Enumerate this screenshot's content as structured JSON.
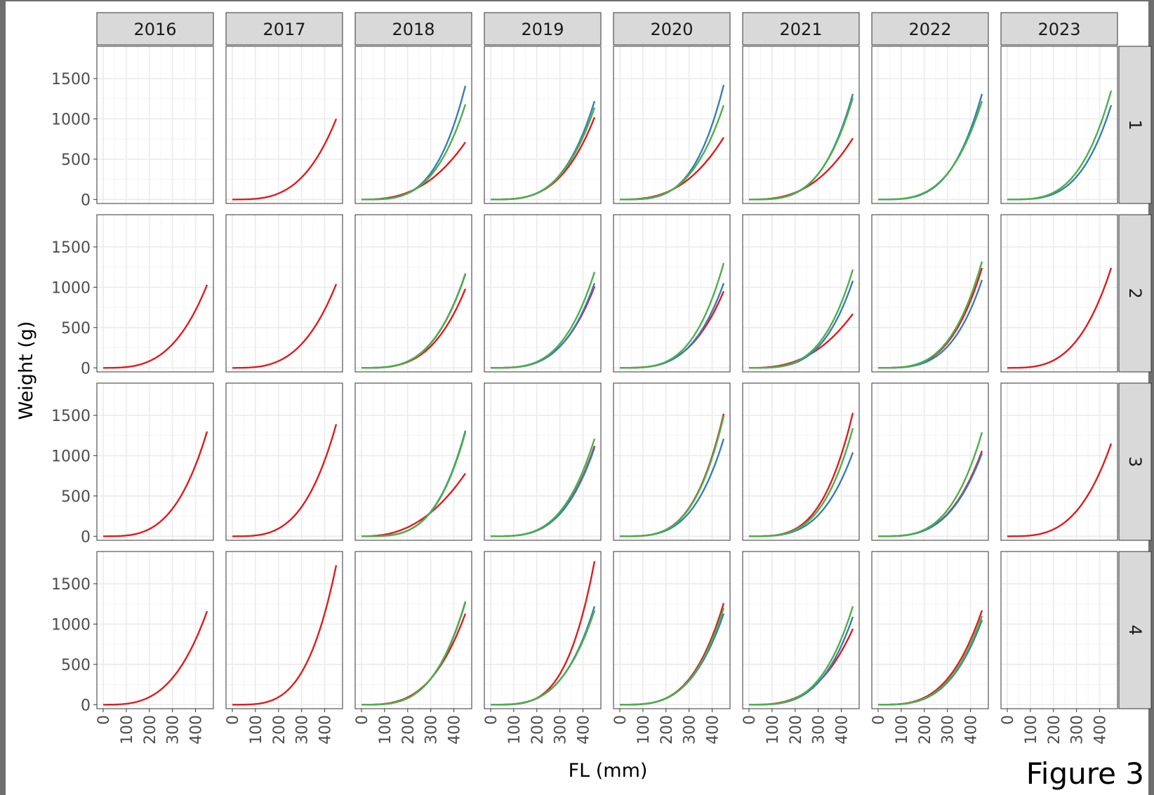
{
  "figure_label": "Figure 3",
  "colors": {
    "red": "#e41a1c",
    "blue": "#377eb8",
    "green": "#4daf4a"
  },
  "chart_data": {
    "type": "line",
    "xlabel": "FL (mm)",
    "ylabel": "Weight (g)",
    "xlim": [
      0,
      450
    ],
    "ylim": [
      -50,
      1900
    ],
    "x_ticks": [
      "0",
      "100",
      "200",
      "300",
      "400"
    ],
    "y_ticks": [
      "0",
      "500",
      "1000",
      "1500"
    ],
    "x_tick_values": [
      0,
      100,
      200,
      300,
      400
    ],
    "y_tick_values": [
      0,
      500,
      1000,
      1500
    ],
    "x_max_curve": 450,
    "grid": true,
    "columns": [
      "2016",
      "2017",
      "2018",
      "2019",
      "2020",
      "2021",
      "2022",
      "2023"
    ],
    "rows": [
      "1",
      "2",
      "3",
      "4"
    ],
    "panels": [
      {
        "row": "1",
        "col": "2016",
        "series": []
      },
      {
        "row": "1",
        "col": "2017",
        "series": [
          {
            "color": "red",
            "w_at_max": 1000,
            "exponent": 3.2
          }
        ]
      },
      {
        "row": "1",
        "col": "2018",
        "series": [
          {
            "color": "red",
            "w_at_max": 710,
            "exponent": 2.6
          },
          {
            "color": "blue",
            "w_at_max": 1410,
            "exponent": 3.6
          },
          {
            "color": "green",
            "w_at_max": 1180,
            "exponent": 3.4
          }
        ]
      },
      {
        "row": "1",
        "col": "2019",
        "series": [
          {
            "color": "red",
            "w_at_max": 1020,
            "exponent": 3.2
          },
          {
            "color": "blue",
            "w_at_max": 1220,
            "exponent": 3.4
          },
          {
            "color": "green",
            "w_at_max": 1140,
            "exponent": 3.3
          }
        ]
      },
      {
        "row": "1",
        "col": "2020",
        "series": [
          {
            "color": "red",
            "w_at_max": 770,
            "exponent": 2.7
          },
          {
            "color": "blue",
            "w_at_max": 1420,
            "exponent": 3.6
          },
          {
            "color": "green",
            "w_at_max": 1170,
            "exponent": 3.3
          }
        ]
      },
      {
        "row": "1",
        "col": "2021",
        "series": [
          {
            "color": "red",
            "w_at_max": 760,
            "exponent": 2.7
          },
          {
            "color": "blue",
            "w_at_max": 1310,
            "exponent": 3.5
          },
          {
            "color": "green",
            "w_at_max": 1260,
            "exponent": 3.4
          }
        ]
      },
      {
        "row": "1",
        "col": "2022",
        "series": [
          {
            "color": "blue",
            "w_at_max": 1310,
            "exponent": 3.5
          },
          {
            "color": "green",
            "w_at_max": 1220,
            "exponent": 3.3
          }
        ]
      },
      {
        "row": "1",
        "col": "2023",
        "series": [
          {
            "color": "blue",
            "w_at_max": 1170,
            "exponent": 3.5
          },
          {
            "color": "green",
            "w_at_max": 1350,
            "exponent": 3.4
          }
        ]
      },
      {
        "row": "2",
        "col": "2016",
        "series": [
          {
            "color": "red",
            "w_at_max": 1030,
            "exponent": 3.1
          }
        ]
      },
      {
        "row": "2",
        "col": "2017",
        "series": [
          {
            "color": "red",
            "w_at_max": 1040,
            "exponent": 3.1
          }
        ]
      },
      {
        "row": "2",
        "col": "2018",
        "series": [
          {
            "color": "red",
            "w_at_max": 980,
            "exponent": 3.2
          },
          {
            "color": "blue",
            "w_at_max": 1170,
            "exponent": 3.3
          },
          {
            "color": "green",
            "w_at_max": 1160,
            "exponent": 3.3
          }
        ]
      },
      {
        "row": "2",
        "col": "2019",
        "series": [
          {
            "color": "red",
            "w_at_max": 1010,
            "exponent": 3.3
          },
          {
            "color": "blue",
            "w_at_max": 1050,
            "exponent": 3.4
          },
          {
            "color": "green",
            "w_at_max": 1190,
            "exponent": 3.4
          }
        ]
      },
      {
        "row": "2",
        "col": "2020",
        "series": [
          {
            "color": "red",
            "w_at_max": 950,
            "exponent": 3.2
          },
          {
            "color": "blue",
            "w_at_max": 1050,
            "exponent": 3.4
          },
          {
            "color": "green",
            "w_at_max": 1300,
            "exponent": 3.5
          }
        ]
      },
      {
        "row": "2",
        "col": "2021",
        "series": [
          {
            "color": "red",
            "w_at_max": 670,
            "exponent": 2.6
          },
          {
            "color": "blue",
            "w_at_max": 1080,
            "exponent": 3.5
          },
          {
            "color": "green",
            "w_at_max": 1220,
            "exponent": 3.5
          }
        ]
      },
      {
        "row": "2",
        "col": "2022",
        "series": [
          {
            "color": "red",
            "w_at_max": 1240,
            "exponent": 3.4
          },
          {
            "color": "blue",
            "w_at_max": 1090,
            "exponent": 3.5
          },
          {
            "color": "green",
            "w_at_max": 1320,
            "exponent": 3.4
          }
        ]
      },
      {
        "row": "2",
        "col": "2023",
        "series": [
          {
            "color": "red",
            "w_at_max": 1240,
            "exponent": 3.2
          }
        ]
      },
      {
        "row": "3",
        "col": "2016",
        "series": [
          {
            "color": "red",
            "w_at_max": 1300,
            "exponent": 3.3
          }
        ]
      },
      {
        "row": "3",
        "col": "2017",
        "series": [
          {
            "color": "red",
            "w_at_max": 1390,
            "exponent": 3.3
          }
        ]
      },
      {
        "row": "3",
        "col": "2018",
        "series": [
          {
            "color": "red",
            "w_at_max": 780,
            "exponent": 2.4
          },
          {
            "color": "blue",
            "w_at_max": 1310,
            "exponent": 3.6
          },
          {
            "color": "green",
            "w_at_max": 1290,
            "exponent": 3.6
          }
        ]
      },
      {
        "row": "3",
        "col": "2019",
        "series": [
          {
            "color": "red",
            "w_at_max": 1120,
            "exponent": 3.4
          },
          {
            "color": "blue",
            "w_at_max": 1100,
            "exponent": 3.4
          },
          {
            "color": "green",
            "w_at_max": 1210,
            "exponent": 3.4
          }
        ]
      },
      {
        "row": "3",
        "col": "2020",
        "series": [
          {
            "color": "red",
            "w_at_max": 1520,
            "exponent": 3.6
          },
          {
            "color": "blue",
            "w_at_max": 1210,
            "exponent": 3.5
          },
          {
            "color": "green",
            "w_at_max": 1490,
            "exponent": 3.6
          }
        ]
      },
      {
        "row": "3",
        "col": "2021",
        "series": [
          {
            "color": "red",
            "w_at_max": 1530,
            "exponent": 3.5
          },
          {
            "color": "blue",
            "w_at_max": 1040,
            "exponent": 3.4
          },
          {
            "color": "green",
            "w_at_max": 1340,
            "exponent": 3.5
          }
        ]
      },
      {
        "row": "3",
        "col": "2022",
        "series": [
          {
            "color": "red",
            "w_at_max": 1060,
            "exponent": 3.3
          },
          {
            "color": "blue",
            "w_at_max": 1030,
            "exponent": 3.3
          },
          {
            "color": "green",
            "w_at_max": 1290,
            "exponent": 3.4
          }
        ]
      },
      {
        "row": "3",
        "col": "2023",
        "series": [
          {
            "color": "red",
            "w_at_max": 1150,
            "exponent": 3.2
          }
        ]
      },
      {
        "row": "4",
        "col": "2016",
        "series": [
          {
            "color": "red",
            "w_at_max": 1160,
            "exponent": 3.1
          }
        ]
      },
      {
        "row": "4",
        "col": "2017",
        "series": [
          {
            "color": "red",
            "w_at_max": 1730,
            "exponent": 3.6
          }
        ]
      },
      {
        "row": "4",
        "col": "2018",
        "series": [
          {
            "color": "red",
            "w_at_max": 1130,
            "exponent": 3.1
          },
          {
            "color": "blue",
            "w_at_max": 1270,
            "exponent": 3.4
          },
          {
            "color": "green",
            "w_at_max": 1280,
            "exponent": 3.4
          }
        ]
      },
      {
        "row": "4",
        "col": "2019",
        "series": [
          {
            "color": "red",
            "w_at_max": 1780,
            "exponent": 3.8
          },
          {
            "color": "blue",
            "w_at_max": 1220,
            "exponent": 3.4
          },
          {
            "color": "green",
            "w_at_max": 1170,
            "exponent": 3.3
          }
        ]
      },
      {
        "row": "4",
        "col": "2020",
        "series": [
          {
            "color": "red",
            "w_at_max": 1260,
            "exponent": 3.4
          },
          {
            "color": "blue",
            "w_at_max": 1130,
            "exponent": 3.3
          },
          {
            "color": "green",
            "w_at_max": 1200,
            "exponent": 3.4
          }
        ]
      },
      {
        "row": "4",
        "col": "2021",
        "series": [
          {
            "color": "red",
            "w_at_max": 940,
            "exponent": 3.0
          },
          {
            "color": "blue",
            "w_at_max": 1090,
            "exponent": 3.4
          },
          {
            "color": "green",
            "w_at_max": 1220,
            "exponent": 3.4
          }
        ]
      },
      {
        "row": "4",
        "col": "2022",
        "series": [
          {
            "color": "red",
            "w_at_max": 1170,
            "exponent": 3.2
          },
          {
            "color": "blue",
            "w_at_max": 1050,
            "exponent": 3.3
          },
          {
            "color": "green",
            "w_at_max": 1100,
            "exponent": 3.3
          }
        ]
      },
      {
        "row": "4",
        "col": "2023",
        "series": []
      }
    ]
  }
}
